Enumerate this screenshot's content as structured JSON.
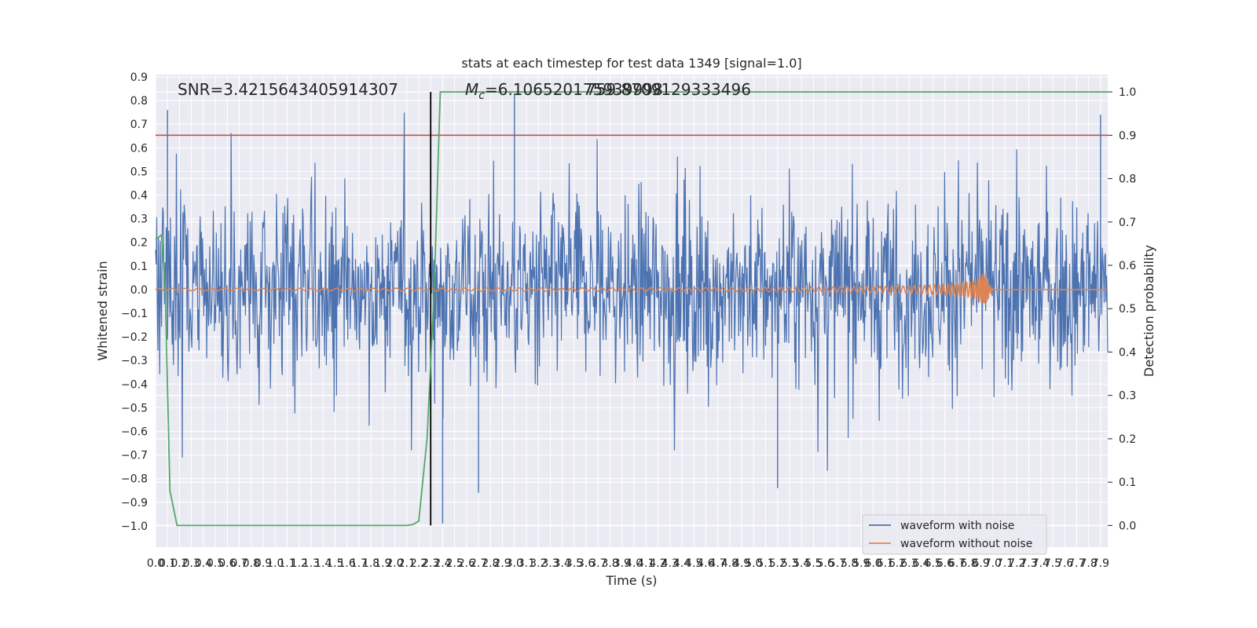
{
  "chart_data": {
    "type": "line",
    "title": "stats at each timestep for test data 1349 [signal=1.0]",
    "xlabel": "Time (s)",
    "ylabel": "Whitened strain",
    "y2label": "Detection probability",
    "xlim": [
      0.0,
      7.96
    ],
    "ylim": [
      -1.09,
      0.91
    ],
    "y2lim": [
      -0.05,
      1.04
    ],
    "xticks": [
      0.0,
      0.1,
      0.2,
      0.3,
      0.4,
      0.5,
      0.6,
      0.7,
      0.8,
      0.9,
      1.0,
      1.1,
      1.2,
      1.3,
      1.4,
      1.5,
      1.6,
      1.7,
      1.8,
      1.9,
      2.0,
      2.1,
      2.2,
      2.3,
      2.4,
      2.5,
      2.6,
      2.7,
      2.8,
      2.9,
      3.0,
      3.1,
      3.2,
      3.3,
      3.4,
      3.5,
      3.6,
      3.7,
      3.8,
      3.9,
      4.0,
      4.1,
      4.2,
      4.3,
      4.4,
      4.5,
      4.6,
      4.7,
      4.8,
      4.9,
      5.0,
      5.1,
      5.2,
      5.3,
      5.4,
      5.5,
      5.6,
      5.7,
      5.8,
      5.9,
      6.0,
      6.1,
      6.2,
      6.3,
      6.4,
      6.5,
      6.6,
      6.7,
      6.8,
      6.9,
      7.0,
      7.1,
      7.2,
      7.3,
      7.4,
      7.5,
      7.6,
      7.7,
      7.8,
      7.9
    ],
    "yticks": [
      0.9,
      0.8,
      0.7,
      0.6,
      0.5,
      0.4,
      0.3,
      0.2,
      0.1,
      0.0,
      -0.1,
      -0.2,
      -0.3,
      -0.4,
      -0.5,
      -0.6,
      -0.7,
      -0.8,
      -0.9,
      -1.0
    ],
    "ytick_labels": [
      "0.9",
      "0.8",
      "0.7",
      "0.6",
      "0.5",
      "0.4",
      "0.3",
      "0.2",
      "0.1",
      "0.0",
      "−0.1",
      "−0.2",
      "−0.3",
      "−0.4",
      "−0.5",
      "−0.6",
      "−0.7",
      "−0.8",
      "−0.9",
      "−1.0"
    ],
    "y2ticks": [
      1.0,
      0.9,
      0.8,
      0.7,
      0.6,
      0.5,
      0.4,
      0.3,
      0.2,
      0.1,
      0.0
    ],
    "y2tick_labels": [
      "1.0",
      "0.9",
      "0.8",
      "0.7",
      "0.6",
      "0.5",
      "0.4",
      "0.3",
      "0.2",
      "0.1",
      "0.0"
    ],
    "series": [
      {
        "name": "waveform with noise",
        "color": "#4c72b0",
        "axis": "left",
        "amplitude_typical": 0.28,
        "peak_max": 0.83,
        "peak_min": -0.99,
        "peak_max_time": 3.0,
        "peak_min_time": 2.4
      },
      {
        "name": "waveform without noise",
        "color": "#dd8452",
        "axis": "left",
        "merger_time": 6.95,
        "peak_amplitude": 0.07,
        "start_amplitude": 0.005
      },
      {
        "name": "detection probability",
        "color": "#55a868",
        "axis": "right",
        "x": [
          0.0,
          0.05,
          0.08,
          0.12,
          0.18,
          0.25,
          0.4,
          0.8,
          1.2,
          1.6,
          2.0,
          2.1,
          2.15,
          2.2,
          2.27,
          2.33,
          2.38,
          2.42,
          2.6,
          3.0,
          4.0,
          5.0,
          6.0,
          7.0,
          7.96
        ],
        "y": [
          0.66,
          0.67,
          0.55,
          0.08,
          0.0,
          0.0,
          0.0,
          0.0,
          0.0,
          0.0,
          0.0,
          0.0,
          0.002,
          0.01,
          0.2,
          0.55,
          1.0,
          1.0,
          1.0,
          1.0,
          1.0,
          1.0,
          1.0,
          1.0,
          1.0
        ]
      }
    ],
    "threshold": {
      "value": 0.9,
      "axis": "right",
      "color": "#c44e52"
    },
    "vertical_marker": {
      "x": 2.3,
      "color": "#000000"
    },
    "annotations": {
      "snr": "SNR=3.4215643405914307",
      "mc_label": "M",
      "mc_sub": "c",
      "mc_value": "=6.106520175939998",
      "mc_overlap": "759.8709129333496"
    },
    "legend": {
      "location": "lower-right",
      "entries": [
        "waveform with noise",
        "waveform without noise"
      ]
    }
  }
}
